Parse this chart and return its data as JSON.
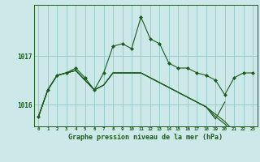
{
  "bg_color": "#cce8e8",
  "grid_color": "#99cccc",
  "line_color": "#1a5c1a",
  "marker_color": "#1a5c1a",
  "title": "Graphe pression niveau de la mer (hPa)",
  "xlim": [
    -0.5,
    23.5
  ],
  "ylim": [
    1015.55,
    1018.05
  ],
  "yticks": [
    1016,
    1017
  ],
  "xticks": [
    0,
    1,
    2,
    3,
    4,
    5,
    6,
    7,
    8,
    9,
    10,
    11,
    12,
    13,
    14,
    15,
    16,
    17,
    18,
    19,
    20,
    21,
    22,
    23
  ],
  "series": [
    {
      "x": [
        0,
        1,
        2,
        3,
        4,
        5,
        6,
        7,
        8,
        9,
        10,
        11,
        12,
        13,
        14,
        15,
        16,
        17,
        18,
        19,
        20,
        21,
        22,
        23
      ],
      "y": [
        1015.75,
        1016.3,
        1016.6,
        1016.65,
        1016.75,
        1016.55,
        1016.3,
        1016.65,
        1017.2,
        1017.25,
        1017.15,
        1017.8,
        1017.35,
        1017.25,
        1016.85,
        1016.75,
        1016.75,
        1016.65,
        1016.6,
        1016.5,
        1016.2,
        1016.55,
        1016.65,
        1016.65
      ],
      "marker": true
    },
    {
      "x": [
        0,
        1,
        2,
        3,
        4,
        5,
        6,
        7,
        8,
        9,
        10,
        11,
        12,
        13,
        14,
        15,
        16,
        17,
        18,
        19,
        20,
        21
      ],
      "y": [
        1015.75,
        1016.3,
        1016.6,
        1016.65,
        1016.7,
        1016.5,
        1016.3,
        1016.4,
        1016.65,
        1016.65,
        1016.65,
        1016.65,
        1016.55,
        1016.45,
        1016.35,
        1016.25,
        1016.15,
        1016.05,
        1015.95,
        1015.8,
        1015.65,
        1015.45
      ],
      "marker": false
    },
    {
      "x": [
        0,
        1,
        2,
        3,
        4,
        5,
        6,
        7,
        8,
        9,
        10,
        11,
        12,
        13,
        14,
        15,
        16,
        17,
        18,
        19,
        20,
        21
      ],
      "y": [
        1015.75,
        1016.3,
        1016.6,
        1016.65,
        1016.7,
        1016.5,
        1016.3,
        1016.4,
        1016.65,
        1016.65,
        1016.65,
        1016.65,
        1016.55,
        1016.45,
        1016.35,
        1016.25,
        1016.15,
        1016.05,
        1015.95,
        1015.75,
        1015.6,
        1015.4
      ],
      "marker": false
    },
    {
      "x": [
        0,
        1,
        2,
        3,
        4,
        5,
        6,
        7,
        8,
        9,
        10,
        11,
        12,
        13,
        14,
        15,
        16,
        17,
        18,
        19,
        20
      ],
      "y": [
        1015.75,
        1016.3,
        1016.6,
        1016.65,
        1016.7,
        1016.5,
        1016.3,
        1016.4,
        1016.65,
        1016.65,
        1016.65,
        1016.65,
        1016.55,
        1016.45,
        1016.35,
        1016.25,
        1016.15,
        1016.05,
        1015.95,
        1015.7,
        1016.05
      ],
      "marker": false
    }
  ]
}
